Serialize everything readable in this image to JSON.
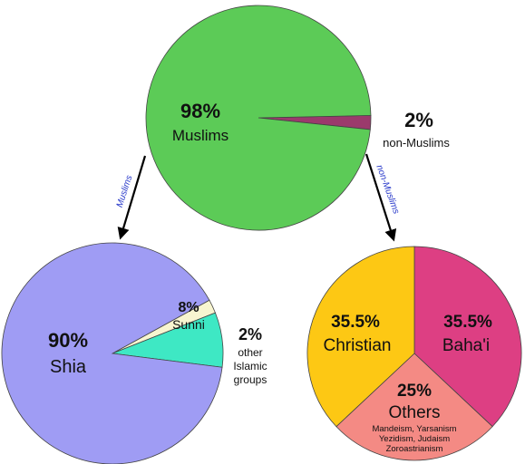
{
  "chart_data": [
    {
      "type": "pie",
      "slices": [
        {
          "value_pct": 98,
          "pct_label": "98%",
          "label": "Muslims",
          "color": "#5ccb57"
        },
        {
          "value_pct": 2,
          "pct_label": "2%",
          "label": "non-Muslims",
          "color": "#9b3a6c"
        }
      ]
    },
    {
      "type": "pie",
      "slices": [
        {
          "value_pct": 90,
          "pct_label": "90%",
          "label": "Shia",
          "color": "#9f9cf4"
        },
        {
          "value_pct": 8,
          "pct_label": "8%",
          "label": "Sunni",
          "color": "#3ee8c4"
        },
        {
          "value_pct": 2,
          "pct_label": "2%",
          "label": "other Islamic groups",
          "color": "#f8f5d0"
        }
      ]
    },
    {
      "type": "pie",
      "slices": [
        {
          "value_pct": 35.5,
          "pct_label": "35.5%",
          "label": "Baha'i",
          "color": "#dd3f83"
        },
        {
          "value_pct": 25,
          "pct_label": "25%",
          "label": "Others",
          "sublabel": "Mandeism, Yarsanism Yezidism, Judaism Zoroastrianism",
          "color": "#f48a84"
        },
        {
          "value_pct": 35.5,
          "pct_label": "35.5%",
          "label": "Christian",
          "color": "#fdc814"
        }
      ]
    }
  ],
  "arrows": [
    {
      "label": "Muslims",
      "color": "#2637c9"
    },
    {
      "label": "non-Muslims",
      "color": "#2637c9"
    }
  ]
}
